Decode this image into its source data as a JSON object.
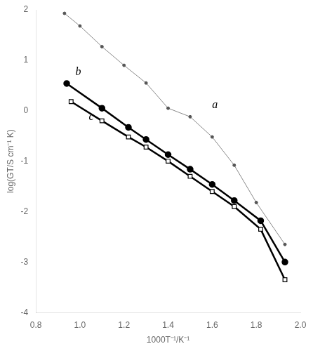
{
  "chart_data": {
    "type": "line",
    "xlabel": "1000T⁻¹/K⁻¹",
    "ylabel": "log(GT/S cm⁻¹ K)",
    "xlim": [
      0.8,
      2.0
    ],
    "ylim": [
      -4,
      2
    ],
    "xticks": [
      0.8,
      {
        "value": 1.0,
        "label": "1.0"
      },
      1.2,
      1.4,
      1.6,
      1.8,
      {
        "value": 2.0,
        "label": "2.0"
      }
    ],
    "yticks": [
      -4,
      -3,
      -2,
      -1,
      0,
      1,
      2
    ],
    "grid": false,
    "series": [
      {
        "color": "#888888",
        "marker": "point",
        "line_style": "solid",
        "x": [
          0.93,
          1.0,
          1.1,
          1.2,
          1.3,
          1.4,
          1.5,
          1.6,
          1.7,
          1.8,
          1.93
        ],
        "values": [
          1.93,
          1.68,
          1.27,
          0.9,
          0.55,
          0.05,
          -0.12,
          -0.52,
          -1.08,
          -1.82,
          -2.65
        ]
      },
      {
        "color": "#000000",
        "marker": "circle",
        "line_style": "solid",
        "x": [
          0.94,
          1.1,
          1.22,
          1.3,
          1.4,
          1.5,
          1.6,
          1.7,
          1.82,
          1.93
        ],
        "values": [
          0.54,
          0.05,
          -0.33,
          -0.57,
          -0.87,
          -1.16,
          -1.46,
          -1.78,
          -2.18,
          -3.0
        ]
      },
      {
        "color": "#000000",
        "marker": "square",
        "line_style": "solid",
        "x": [
          0.96,
          1.1,
          1.22,
          1.3,
          1.4,
          1.5,
          1.6,
          1.7,
          1.82,
          1.93
        ],
        "values": [
          0.18,
          -0.2,
          -0.52,
          -0.72,
          -1.0,
          -1.3,
          -1.6,
          -1.9,
          -2.35,
          -3.35
        ]
      }
    ],
    "annotations": [
      {
        "text": "a",
        "x": 1.6,
        "y": 0.05
      },
      {
        "text": "b",
        "x": 0.98,
        "y": 0.7
      },
      {
        "text": "c",
        "x": 1.04,
        "y": -0.18
      }
    ]
  }
}
